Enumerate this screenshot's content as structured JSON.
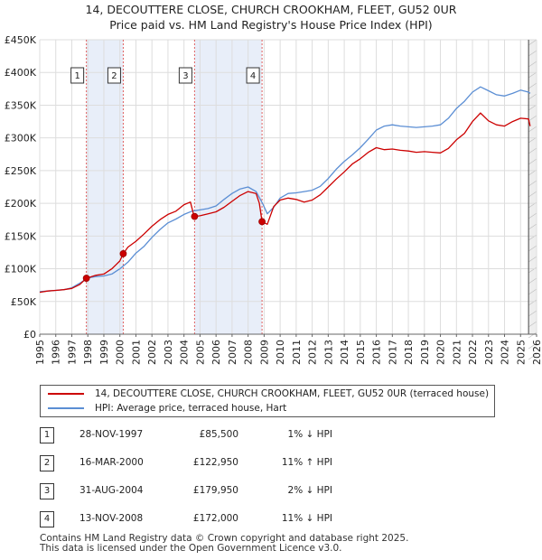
{
  "chart_data": {
    "type": "line",
    "title": "14, DECOUTTERE CLOSE, CHURCH CROOKHAM, FLEET, GU52 0UR",
    "subtitle": "Price paid vs. HM Land Registry's House Price Index (HPI)",
    "xlim": [
      1995,
      2026
    ],
    "ylim": [
      0,
      450000
    ],
    "x_ticks": [
      "1995",
      "1996",
      "1997",
      "1998",
      "1999",
      "2000",
      "2001",
      "2002",
      "2003",
      "2004",
      "2005",
      "2006",
      "2007",
      "2008",
      "2009",
      "2010",
      "2011",
      "2012",
      "2013",
      "2014",
      "2015",
      "2016",
      "2017",
      "2018",
      "2019",
      "2020",
      "2021",
      "2022",
      "2023",
      "2024",
      "2025",
      "2026"
    ],
    "y_ticks": [
      {
        "value": 0,
        "label": "£0"
      },
      {
        "value": 50000,
        "label": "£50K"
      },
      {
        "value": 100000,
        "label": "£100K"
      },
      {
        "value": 150000,
        "label": "£150K"
      },
      {
        "value": 200000,
        "label": "£200K"
      },
      {
        "value": 250000,
        "label": "£250K"
      },
      {
        "value": 300000,
        "label": "£300K"
      },
      {
        "value": 350000,
        "label": "£350K"
      },
      {
        "value": 400000,
        "label": "£400K"
      },
      {
        "value": 450000,
        "label": "£450K"
      }
    ],
    "grid": true,
    "shaded_periods": [
      [
        1997.91,
        2000.21
      ],
      [
        2004.66,
        2008.87
      ]
    ],
    "forecast_start": 2025.5,
    "series": [
      {
        "name": "14, DECOUTTERE CLOSE, CHURCH CROOKHAM, FLEET, GU52 0UR (terraced house)",
        "color": "#cc0000",
        "x": [
          1995.0,
          1995.5,
          1996.0,
          1996.5,
          1997.0,
          1997.5,
          1997.91,
          1998.5,
          1999.0,
          1999.5,
          2000.0,
          2000.21,
          2000.5,
          2001.0,
          2001.5,
          2002.0,
          2002.5,
          2003.0,
          2003.5,
          2004.0,
          2004.4,
          2004.6,
          2004.66,
          2005.0,
          2005.5,
          2006.0,
          2006.5,
          2007.0,
          2007.5,
          2008.0,
          2008.5,
          2008.7,
          2008.87,
          2009.2,
          2009.6,
          2010.0,
          2010.5,
          2011.0,
          2011.5,
          2012.0,
          2012.5,
          2013.0,
          2013.5,
          2014.0,
          2014.5,
          2015.0,
          2015.5,
          2016.0,
          2016.5,
          2017.0,
          2017.5,
          2018.0,
          2018.5,
          2019.0,
          2019.5,
          2020.0,
          2020.5,
          2021.0,
          2021.5,
          2022.0,
          2022.5,
          2023.0,
          2023.5,
          2024.0,
          2024.5,
          2025.0,
          2025.5,
          2025.6
        ],
        "values": [
          64000,
          66000,
          67000,
          68000,
          70000,
          76000,
          85500,
          90000,
          92000,
          100000,
          112000,
          122950,
          133000,
          142000,
          153000,
          165000,
          175000,
          183000,
          188000,
          198000,
          202000,
          183000,
          179950,
          181000,
          184000,
          187000,
          194000,
          203000,
          212000,
          218000,
          215000,
          200000,
          172000,
          168000,
          195000,
          205000,
          208000,
          206000,
          202000,
          205000,
          213000,
          225000,
          237000,
          248000,
          260000,
          268000,
          278000,
          285000,
          282000,
          283000,
          281000,
          280000,
          278000,
          279000,
          278000,
          277000,
          284000,
          297000,
          307000,
          325000,
          338000,
          326000,
          320000,
          318000,
          325000,
          330000,
          329000,
          318000
        ]
      },
      {
        "name": "HPI: Average price, terraced house, Hart",
        "color": "#5b8ed4",
        "x": [
          1995.0,
          1995.5,
          1996.0,
          1996.5,
          1997.0,
          1997.5,
          1998.0,
          1998.5,
          1999.0,
          1999.5,
          2000.0,
          2000.5,
          2001.0,
          2001.5,
          2002.0,
          2002.5,
          2003.0,
          2003.5,
          2004.0,
          2004.5,
          2005.0,
          2005.5,
          2006.0,
          2006.5,
          2007.0,
          2007.5,
          2008.0,
          2008.5,
          2008.9,
          2009.2,
          2009.6,
          2010.0,
          2010.5,
          2011.0,
          2011.5,
          2012.0,
          2012.5,
          2013.0,
          2013.5,
          2014.0,
          2014.5,
          2015.0,
          2015.5,
          2016.0,
          2016.5,
          2017.0,
          2017.5,
          2018.0,
          2018.5,
          2019.0,
          2019.5,
          2020.0,
          2020.5,
          2021.0,
          2021.5,
          2022.0,
          2022.5,
          2023.0,
          2023.5,
          2024.0,
          2024.5,
          2025.0,
          2025.5,
          2025.6
        ],
        "values": [
          65000,
          66000,
          67000,
          68000,
          71000,
          78000,
          86000,
          88000,
          89000,
          92000,
          100000,
          110000,
          124000,
          134000,
          148000,
          160000,
          170000,
          176000,
          183000,
          188000,
          190000,
          192000,
          196000,
          206000,
          215000,
          222000,
          225000,
          218000,
          200000,
          184000,
          194000,
          208000,
          215000,
          216000,
          218000,
          220000,
          226000,
          238000,
          252000,
          264000,
          274000,
          285000,
          298000,
          312000,
          318000,
          320000,
          318000,
          317000,
          316000,
          317000,
          318000,
          320000,
          330000,
          345000,
          356000,
          370000,
          378000,
          372000,
          366000,
          364000,
          368000,
          373000,
          370000,
          368000
        ]
      }
    ],
    "transactions": [
      {
        "num": "1",
        "date": "28-NOV-1997",
        "price": "£85,500",
        "hpi": "1% ↓ HPI",
        "x": 1997.91,
        "value": 85500
      },
      {
        "num": "2",
        "date": "16-MAR-2000",
        "price": "£122,950",
        "hpi": "11% ↑ HPI",
        "x": 2000.21,
        "value": 122950
      },
      {
        "num": "3",
        "date": "31-AUG-2004",
        "price": "£179,950",
        "hpi": "2% ↓ HPI",
        "x": 2004.66,
        "value": 179950
      },
      {
        "num": "4",
        "date": "13-NOV-2008",
        "price": "£172,000",
        "hpi": "11% ↓ HPI",
        "x": 2008.87,
        "value": 172000
      }
    ]
  },
  "legend": {
    "property": "14, DECOUTTERE CLOSE, CHURCH CROOKHAM, FLEET, GU52 0UR (terraced house)",
    "hpi": "HPI: Average price, terraced house, Hart"
  },
  "footer": {
    "line1": "Contains HM Land Registry data © Crown copyright and database right 2025.",
    "line2": "This data is licensed under the Open Government Licence v3.0."
  }
}
